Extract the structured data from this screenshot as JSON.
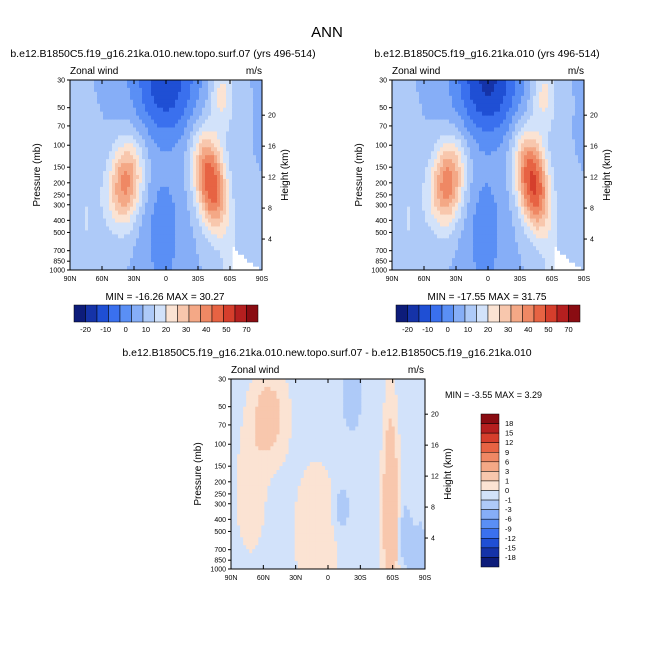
{
  "page_title": "ANN",
  "chart_data": [
    {
      "type": "contour",
      "id": "case",
      "title": "b.e12.B1850C5.f19_g16.21ka.010.new.topo.surf.07 (yrs 496-514)",
      "variable": "Zonal wind",
      "units": "m/s",
      "ylabel": "Pressure (mb)",
      "y2label": "Height (km)",
      "xticks": [
        "90N",
        "60N",
        "30N",
        "0",
        "30S",
        "60S",
        "90S"
      ],
      "xlim": [
        90,
        -90
      ],
      "yticks": [
        "30",
        "50",
        "70",
        "100",
        "150",
        "200",
        "250",
        "300",
        "400",
        "500",
        "700",
        "850",
        "1000"
      ],
      "ylim": [
        1000,
        30
      ],
      "y2ticks": [
        "20",
        "16",
        "12",
        "8",
        "4"
      ],
      "stats": "MIN = -16.26  MAX = 30.27",
      "colorbar_labels": [
        "-20",
        "-10",
        "0",
        "10",
        "20",
        "30",
        "40",
        "50",
        "70"
      ],
      "colorbar_colors": [
        "#0d1c7a",
        "#1533a8",
        "#1f4fd4",
        "#3a70ee",
        "#5a8ff5",
        "#86aef7",
        "#aecaf8",
        "#d2e2fa",
        "#fbe3d3",
        "#f8c7ad",
        "#f4a886",
        "#ef8864",
        "#e76343",
        "#d53e2c",
        "#b51f1f",
        "#8a0c12"
      ],
      "features": {
        "east_jet_nh_lat": 38,
        "east_jet_sh_lat": -42,
        "east_jet_peak": 30,
        "west_top": -16
      }
    },
    {
      "type": "contour",
      "id": "control",
      "title": "b.e12.B1850C5.f19_g16.21ka.010 (yrs 496-514)",
      "variable": "Zonal wind",
      "units": "m/s",
      "ylabel": "Pressure (mb)",
      "y2label": "Height (km)",
      "xticks": [
        "90N",
        "60N",
        "30N",
        "0",
        "30S",
        "60S",
        "90S"
      ],
      "xlim": [
        90,
        -90
      ],
      "yticks": [
        "30",
        "50",
        "70",
        "100",
        "150",
        "200",
        "250",
        "300",
        "400",
        "500",
        "700",
        "850",
        "1000"
      ],
      "ylim": [
        1000,
        30
      ],
      "y2ticks": [
        "20",
        "16",
        "12",
        "8",
        "4"
      ],
      "stats": "MIN = -17.55  MAX = 31.75",
      "colorbar_labels": [
        "-20",
        "-10",
        "0",
        "10",
        "20",
        "30",
        "40",
        "50",
        "70"
      ],
      "colorbar_colors": [
        "#0d1c7a",
        "#1533a8",
        "#1f4fd4",
        "#3a70ee",
        "#5a8ff5",
        "#86aef7",
        "#aecaf8",
        "#d2e2fa",
        "#fbe3d3",
        "#f8c7ad",
        "#f4a886",
        "#ef8864",
        "#e76343",
        "#d53e2c",
        "#b51f1f",
        "#8a0c12"
      ],
      "features": {
        "east_jet_nh_lat": 38,
        "east_jet_sh_lat": -42,
        "east_jet_peak": 32,
        "west_top": -18
      }
    },
    {
      "type": "contour",
      "id": "difference",
      "title": "b.e12.B1850C5.f19_g16.21ka.010.new.topo.surf.07 - b.e12.B1850C5.f19_g16.21ka.010",
      "variable": "Zonal wind",
      "units": "m/s",
      "ylabel": "Pressure (mb)",
      "y2label": "Height (km)",
      "xticks": [
        "90N",
        "60N",
        "30N",
        "0",
        "30S",
        "60S",
        "90S"
      ],
      "xlim": [
        90,
        -90
      ],
      "yticks": [
        "30",
        "50",
        "70",
        "100",
        "150",
        "200",
        "250",
        "300",
        "400",
        "500",
        "700",
        "850",
        "1000"
      ],
      "ylim": [
        1000,
        30
      ],
      "y2ticks": [
        "20",
        "16",
        "12",
        "8",
        "4"
      ],
      "stats": "MIN = -3.55  MAX =  3.29",
      "colorbar_labels": [
        "18",
        "15",
        "12",
        "9",
        "6",
        "3",
        "1",
        "0",
        "-1",
        "-3",
        "-6",
        "-9",
        "-12",
        "-15",
        "-18"
      ],
      "colorbar_colors": [
        "#8a0c12",
        "#b51f1f",
        "#d53e2c",
        "#e76343",
        "#ef8864",
        "#f4a886",
        "#f8c7ad",
        "#fbe3d3",
        "#d2e2fa",
        "#aecaf8",
        "#86aef7",
        "#5a8ff5",
        "#3a70ee",
        "#1f4fd4",
        "#1533a8",
        "#0d1c7a"
      ]
    }
  ]
}
